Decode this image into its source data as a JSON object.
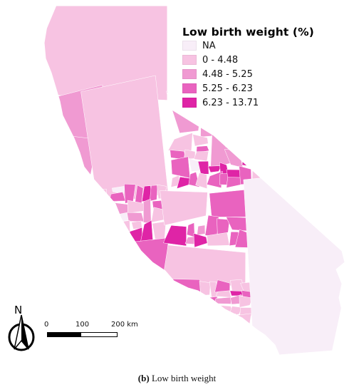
{
  "legend": {
    "title": "Low birth weight (%)",
    "classes": [
      {
        "label": "NA",
        "color": "#f8eef8"
      },
      {
        "label": "0 - 4.48",
        "color": "#f7c3e2"
      },
      {
        "label": "4.48 - 5.25",
        "color": "#f09ad2"
      },
      {
        "label": "5.25 - 6.23",
        "color": "#e963bf"
      },
      {
        "label": "6.23 - 13.71",
        "color": "#df24a6"
      }
    ]
  },
  "scale_bar": {
    "labels": [
      "0",
      "100",
      "200 km"
    ]
  },
  "north_arrow": {
    "label": "N",
    "icon": "north-arrow-icon"
  },
  "caption": {
    "panel": "(b)",
    "text": "Low birth weight"
  },
  "colors": {
    "boundary": "#ffffff",
    "background": "#ffffff"
  }
}
